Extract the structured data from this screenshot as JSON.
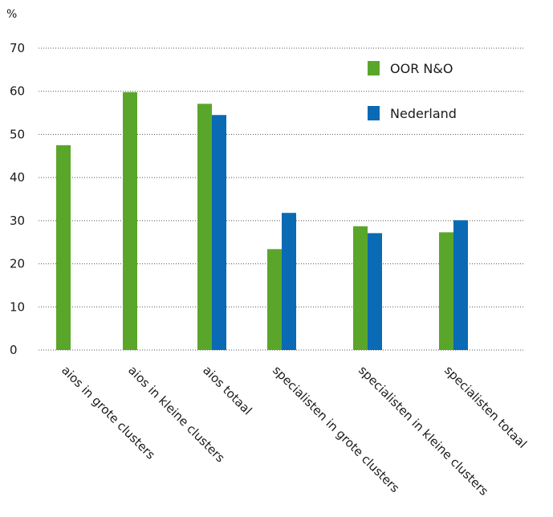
{
  "chart_data": {
    "type": "bar",
    "ylabel": "%",
    "ylim": [
      0,
      70
    ],
    "yticks": [
      0,
      10,
      20,
      30,
      40,
      50,
      60,
      70
    ],
    "grid": true,
    "legend_position": "top-right",
    "categories": [
      "aios in grote clusters",
      "aios in kleine clusters",
      "aios totaal",
      "specialisten in grote clusters",
      "specialisten in kleine clusters",
      "specialisten totaal"
    ],
    "series": [
      {
        "name": "OOR N&O",
        "color": "#5aa62b",
        "values": [
          47.5,
          59.8,
          57.1,
          23.4,
          28.7,
          27.3
        ]
      },
      {
        "name": "Nederland",
        "color": "#0a6ab4",
        "values": [
          null,
          null,
          54.5,
          31.8,
          27.1,
          30.1
        ]
      }
    ]
  }
}
